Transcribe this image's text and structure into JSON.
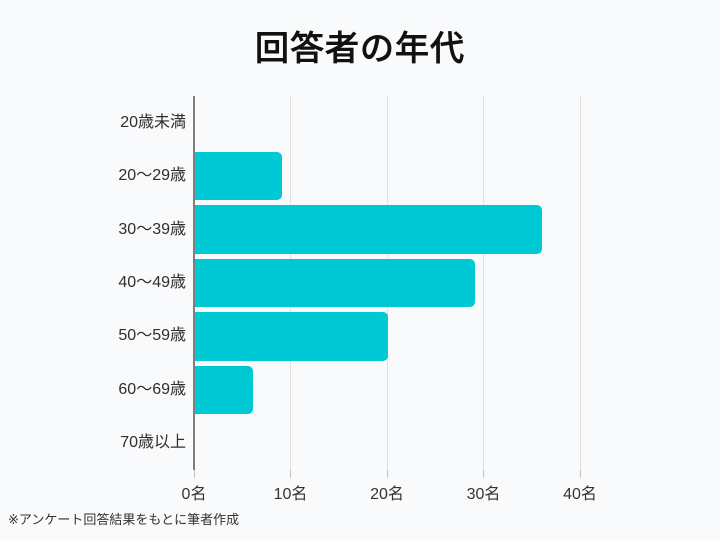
{
  "header": {
    "title": "回答者の年代"
  },
  "footer": {
    "note": "※アンケート回答結果をもとに筆者作成"
  },
  "chart_data": {
    "type": "bar",
    "orientation": "horizontal",
    "title": "回答者の年代",
    "categories": [
      "20歳未満",
      "20～29歳",
      "30～39歳",
      "40～49歳",
      "50～59歳",
      "60～69歳",
      "70歳以上"
    ],
    "values": [
      0,
      9,
      36,
      29,
      20,
      6,
      0
    ],
    "unit": "名",
    "xlabel": "",
    "ylabel": "",
    "xlim": [
      0,
      40
    ],
    "x_ticks": [
      0,
      10,
      20,
      30,
      40
    ],
    "x_tick_labels": [
      "0名",
      "10名",
      "20名",
      "30名",
      "40名"
    ],
    "grid": true,
    "legend": false,
    "bar_color": "#00C9D6",
    "background_color": "#F9FAFB",
    "gridline_color": "#E1E1E1",
    "axis_color": "#7E7E7E",
    "text_color": "#2E2E2E"
  }
}
